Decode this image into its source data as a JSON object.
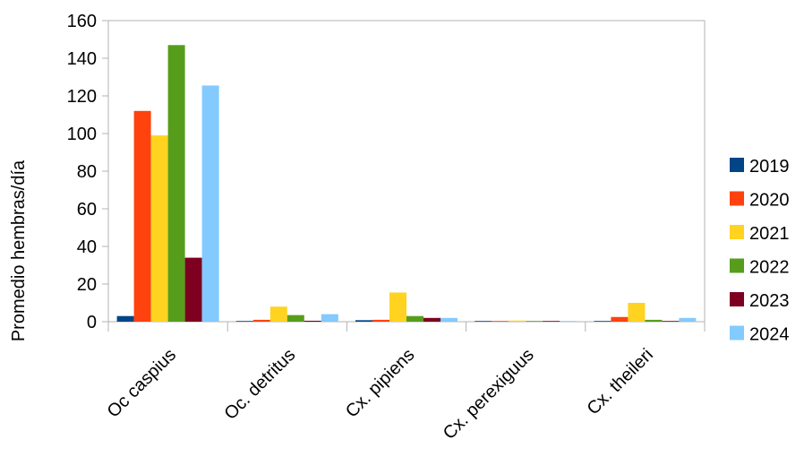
{
  "chart_data": {
    "type": "bar",
    "title": "",
    "xlabel": "",
    "ylabel": "Promedio hembras/día",
    "ylim": [
      0,
      160
    ],
    "yticks": [
      0,
      20,
      40,
      60,
      80,
      100,
      120,
      140,
      160
    ],
    "grid": false,
    "legend_position": "right",
    "categories": [
      "Oc caspius",
      "Oc. detritus",
      "Cx. pipiens",
      "Cx. perexiguus",
      "Cx. theileri"
    ],
    "series": [
      {
        "name": "2019",
        "color": "#004586",
        "values": [
          3,
          0.3,
          0.8,
          0.2,
          0.2
        ]
      },
      {
        "name": "2020",
        "color": "#ff420e",
        "values": [
          112,
          1,
          1,
          0.2,
          2.5
        ]
      },
      {
        "name": "2021",
        "color": "#ffd320",
        "values": [
          99,
          8,
          15.5,
          0.6,
          10
        ]
      },
      {
        "name": "2022",
        "color": "#579d1c",
        "values": [
          147,
          3.5,
          3,
          0.2,
          1
        ]
      },
      {
        "name": "2023",
        "color": "#7e0021",
        "values": [
          34,
          0.5,
          2,
          0.2,
          0.3
        ]
      },
      {
        "name": "2024",
        "color": "#83caff",
        "values": [
          125.5,
          4,
          2,
          0.2,
          2
        ]
      }
    ]
  }
}
